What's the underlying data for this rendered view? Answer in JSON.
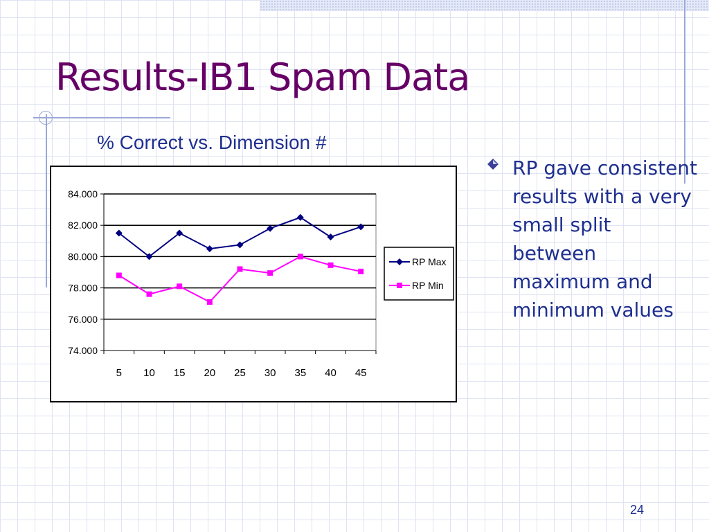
{
  "slide": {
    "title": "Results-IB1 Spam Data",
    "bullet": "RP gave consistent results with a very small split between maximum and minimum values",
    "page_number": "24"
  },
  "colors": {
    "title": "#660066",
    "body_text": "#1f2f8f",
    "rp_max": "#000080",
    "rp_min": "#ff00ff"
  },
  "chart_data": {
    "type": "line",
    "title": "% Correct vs. Dimension #",
    "xlabel": "",
    "ylabel": "",
    "categories": [
      "5",
      "10",
      "15",
      "20",
      "25",
      "30",
      "35",
      "40",
      "45"
    ],
    "y_ticks": [
      "74.000",
      "76.000",
      "78.000",
      "80.000",
      "82.000",
      "84.000"
    ],
    "ylim": [
      74,
      84
    ],
    "grid": "horizontal",
    "legend_position": "right",
    "series": [
      {
        "name": "RP Max",
        "marker": "diamond",
        "color": "#000080",
        "values": [
          81.5,
          80.0,
          81.5,
          80.5,
          80.75,
          81.8,
          82.5,
          81.25,
          81.9
        ]
      },
      {
        "name": "RP Min",
        "marker": "square",
        "color": "#ff00ff",
        "values": [
          78.8,
          77.6,
          78.1,
          77.1,
          79.2,
          78.95,
          80.0,
          79.45,
          79.05
        ]
      }
    ]
  }
}
